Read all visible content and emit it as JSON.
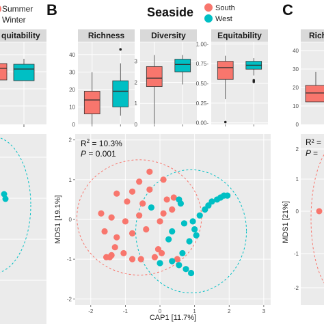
{
  "colors": {
    "south": "#F8766D",
    "west": "#00BFC4",
    "panel_bg": "#EBEBEB",
    "grid": "#FFFFFF",
    "strip_bg": "#D9D9D9"
  },
  "left_partial": {
    "legend": [
      "Summer",
      "Winter"
    ],
    "strip": "quitability"
  },
  "panel_b": {
    "letter": "B",
    "title": "Seaside",
    "legend": [
      {
        "label": "South",
        "color": "#F8766D"
      },
      {
        "label": "West",
        "color": "#00BFC4"
      }
    ]
  },
  "right_partial": {
    "letter": "C",
    "strip": "Rich",
    "stats": [
      "R² =",
      "P ="
    ],
    "ylabel": "MDS1  [21%]"
  },
  "chart_data": [
    {
      "type": "box",
      "title": "Richness",
      "categories": [
        "South",
        "West"
      ],
      "ylim": [
        0,
        47
      ],
      "yticks": [
        0,
        10,
        20,
        30,
        40
      ],
      "boxes": [
        {
          "group": "South",
          "min": 0,
          "q1": 6,
          "median": 14,
          "q3": 19,
          "max": 30,
          "outliers": []
        },
        {
          "group": "West",
          "min": 5,
          "q1": 10,
          "median": 19,
          "q3": 25,
          "max": 35,
          "outliers": [
            43
          ]
        }
      ]
    },
    {
      "type": "box",
      "title": "Diversity",
      "categories": [
        "South",
        "West"
      ],
      "ylim": [
        0,
        3.9
      ],
      "yticks": [
        0,
        1,
        2,
        3
      ],
      "boxes": [
        {
          "group": "South",
          "min": 0.02,
          "q1": 1.8,
          "median": 2.2,
          "q3": 2.75,
          "max": 3.3,
          "outliers": []
        },
        {
          "group": "West",
          "min": 1.9,
          "q1": 2.5,
          "median": 2.85,
          "q3": 3.1,
          "max": 3.3,
          "outliers": []
        }
      ]
    },
    {
      "type": "box",
      "title": "Equitability",
      "categories": [
        "South",
        "West"
      ],
      "ylim": [
        -0.02,
        1.02
      ],
      "yticks": [
        0.0,
        0.25,
        0.5,
        0.75,
        1.0
      ],
      "ytick_labels": [
        "0.00-",
        "0.25-",
        "0.50-",
        "0.75-",
        "1.00-"
      ],
      "boxes": [
        {
          "group": "South",
          "min": 0.3,
          "q1": 0.55,
          "median": 0.7,
          "q3": 0.78,
          "max": 0.85,
          "outliers": [
            0.01
          ]
        },
        {
          "group": "West",
          "min": 0.6,
          "q1": 0.68,
          "median": 0.73,
          "q3": 0.78,
          "max": 0.82,
          "outliers": [
            0.52,
            0.54
          ]
        }
      ]
    },
    {
      "type": "scatter",
      "xlabel": "CAP1   [11.7%]",
      "ylabel": "MDS1   [19.1%]",
      "xlim": [
        -2.45,
        3.2
      ],
      "ylim": [
        -2.15,
        2.15
      ],
      "xticks": [
        -2,
        -1,
        0,
        1,
        2,
        3
      ],
      "yticks": [
        -2,
        -1,
        0,
        1,
        2
      ],
      "grid": true,
      "stats": {
        "r2_label": "R",
        "r2_value": "= 10.3%",
        "p_label": "P",
        "p_value": "= 0.001"
      },
      "series": [
        {
          "name": "South",
          "color": "#F8766D",
          "points": [
            [
              -0.3,
              1.2
            ],
            [
              0.1,
              1.0
            ],
            [
              -0.6,
              0.95
            ],
            [
              -0.3,
              0.75
            ],
            [
              0.4,
              0.55
            ],
            [
              -0.8,
              0.7
            ],
            [
              -1.25,
              0.65
            ],
            [
              -0.95,
              0.45
            ],
            [
              0.2,
              0.5
            ],
            [
              -0.5,
              0.4
            ],
            [
              0.35,
              0.25
            ],
            [
              -1.7,
              0.15
            ],
            [
              -1.4,
              0.05
            ],
            [
              -1.0,
              -0.05
            ],
            [
              -0.6,
              0.1
            ],
            [
              0.0,
              -0.05
            ],
            [
              -0.4,
              -0.25
            ],
            [
              -1.6,
              -0.3
            ],
            [
              -0.8,
              -0.35
            ],
            [
              -1.25,
              -0.45
            ],
            [
              -1.3,
              -0.7
            ],
            [
              -0.05,
              -0.75
            ],
            [
              -1.05,
              -0.85
            ],
            [
              -1.4,
              -0.9
            ],
            [
              -1.55,
              -0.95
            ],
            [
              -0.15,
              -0.95
            ],
            [
              0.05,
              -0.85
            ],
            [
              -0.8,
              -1.0
            ],
            [
              -0.55,
              -1.0
            ],
            [
              0.5,
              -1.0
            ],
            [
              -1.45,
              -0.95
            ],
            [
              0.1,
              0.15
            ]
          ],
          "ellipse": {
            "cx": -0.6,
            "cy": 0.05,
            "rx": 1.8,
            "ry": 1.45,
            "angle_deg": 0
          }
        },
        {
          "name": "West",
          "color": "#00BFC4",
          "points": [
            [
              0.6,
              0.4
            ],
            [
              0.55,
              0.5
            ],
            [
              -0.25,
              0.3
            ],
            [
              1.65,
              0.5
            ],
            [
              1.75,
              0.55
            ],
            [
              1.85,
              0.6
            ],
            [
              1.95,
              0.6
            ],
            [
              1.5,
              0.45
            ],
            [
              1.3,
              0.25
            ],
            [
              1.15,
              0.1
            ],
            [
              0.95,
              -0.05
            ],
            [
              1.4,
              0.35
            ],
            [
              0.7,
              -0.1
            ],
            [
              1.0,
              -0.25
            ],
            [
              1.05,
              -0.4
            ],
            [
              0.85,
              -0.55
            ],
            [
              0.25,
              -0.5
            ],
            [
              0.35,
              -0.3
            ],
            [
              0.65,
              -0.85
            ],
            [
              0.0,
              -1.1
            ],
            [
              0.55,
              -1.15
            ],
            [
              0.75,
              -1.25
            ],
            [
              0.9,
              -1.35
            ],
            [
              0.35,
              -1.05
            ]
          ],
          "ellipse": {
            "cx": 0.9,
            "cy": -0.3,
            "rx": 1.6,
            "ry": 1.55,
            "angle_deg": 0
          }
        }
      ]
    }
  ]
}
